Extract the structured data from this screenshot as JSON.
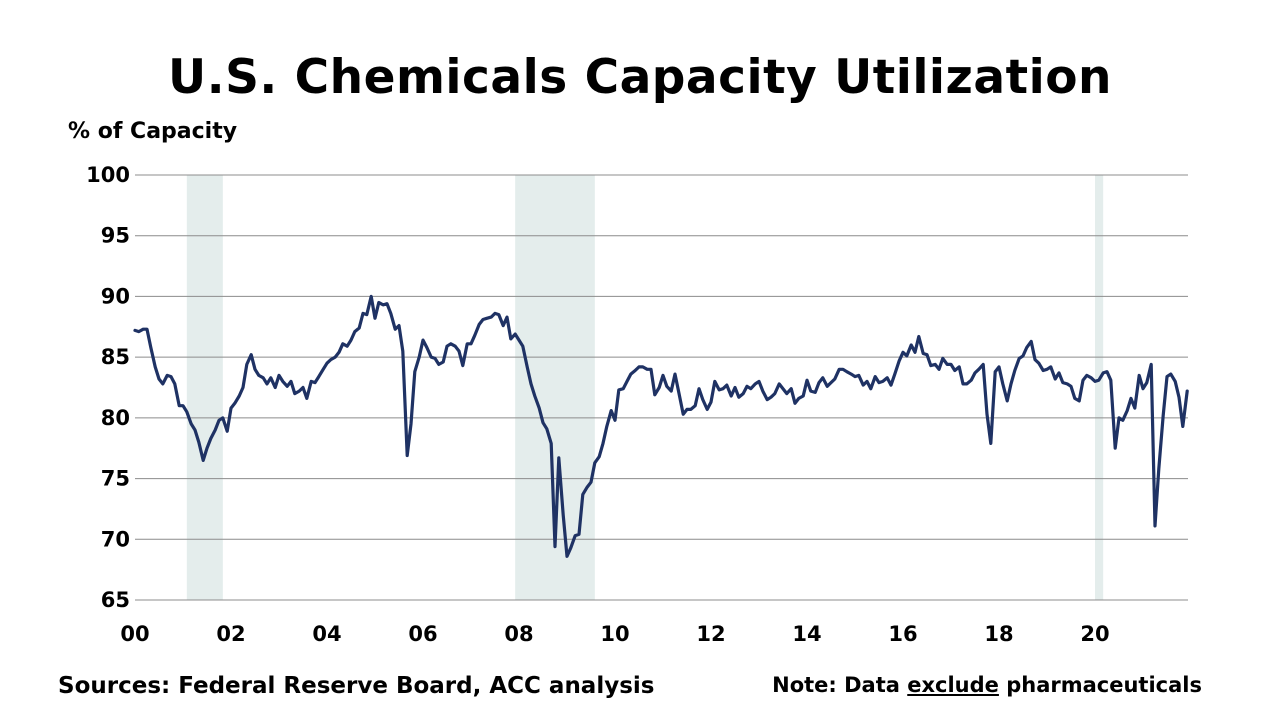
{
  "chart_data": {
    "type": "line",
    "title": "U.S. Chemicals Capacity Utilization",
    "ylabel": "% of Capacity",
    "xlabel": "",
    "ylim": [
      65,
      100
    ],
    "xlim": [
      2000,
      2021.83
    ],
    "yticks": [
      65,
      70,
      75,
      80,
      85,
      90,
      95,
      100
    ],
    "xticks": [
      {
        "x": 2000,
        "label": "00"
      },
      {
        "x": 2002,
        "label": "02"
      },
      {
        "x": 2004,
        "label": "04"
      },
      {
        "x": 2006,
        "label": "06"
      },
      {
        "x": 2008,
        "label": "08"
      },
      {
        "x": 2010,
        "label": "10"
      },
      {
        "x": 2012,
        "label": "12"
      },
      {
        "x": 2014,
        "label": "14"
      },
      {
        "x": 2016,
        "label": "16"
      },
      {
        "x": 2018,
        "label": "18"
      },
      {
        "x": 2020,
        "label": "20"
      }
    ],
    "grid": "horizontal",
    "recessions": [
      [
        2001.08,
        2001.83
      ],
      [
        2007.92,
        2009.58
      ],
      [
        2020.0,
        2020.17
      ]
    ],
    "line_color": "#1F3264",
    "recession_color": "#E4EDEC",
    "series": [
      {
        "points": [
          [
            2000.0,
            87.2
          ],
          [
            2000.08,
            87.1
          ],
          [
            2000.17,
            87.3
          ],
          [
            2000.25,
            87.3
          ],
          [
            2000.33,
            85.8
          ],
          [
            2000.42,
            84.2
          ],
          [
            2000.5,
            83.2
          ],
          [
            2000.58,
            82.8
          ],
          [
            2000.67,
            83.5
          ],
          [
            2000.75,
            83.4
          ],
          [
            2000.83,
            82.8
          ],
          [
            2000.92,
            81.0
          ],
          [
            2001.0,
            81.0
          ],
          [
            2001.08,
            80.5
          ],
          [
            2001.17,
            79.5
          ],
          [
            2001.25,
            79.0
          ],
          [
            2001.33,
            78.0
          ],
          [
            2001.42,
            76.5
          ],
          [
            2001.5,
            77.5
          ],
          [
            2001.58,
            78.3
          ],
          [
            2001.67,
            79.0
          ],
          [
            2001.75,
            79.8
          ],
          [
            2001.83,
            80.0
          ],
          [
            2001.92,
            78.9
          ],
          [
            2002.0,
            80.8
          ],
          [
            2002.08,
            81.2
          ],
          [
            2002.17,
            81.8
          ],
          [
            2002.25,
            82.5
          ],
          [
            2002.33,
            84.4
          ],
          [
            2002.42,
            85.2
          ],
          [
            2002.5,
            84.0
          ],
          [
            2002.58,
            83.5
          ],
          [
            2002.67,
            83.3
          ],
          [
            2002.75,
            82.8
          ],
          [
            2002.83,
            83.3
          ],
          [
            2002.92,
            82.5
          ],
          [
            2003.0,
            83.5
          ],
          [
            2003.08,
            83.0
          ],
          [
            2003.17,
            82.6
          ],
          [
            2003.25,
            83.0
          ],
          [
            2003.33,
            82.0
          ],
          [
            2003.42,
            82.2
          ],
          [
            2003.5,
            82.5
          ],
          [
            2003.58,
            81.6
          ],
          [
            2003.67,
            83.0
          ],
          [
            2003.75,
            82.9
          ],
          [
            2003.83,
            83.4
          ],
          [
            2003.92,
            84.0
          ],
          [
            2004.0,
            84.5
          ],
          [
            2004.08,
            84.8
          ],
          [
            2004.17,
            85.0
          ],
          [
            2004.25,
            85.4
          ],
          [
            2004.33,
            86.1
          ],
          [
            2004.42,
            85.9
          ],
          [
            2004.5,
            86.4
          ],
          [
            2004.58,
            87.1
          ],
          [
            2004.67,
            87.4
          ],
          [
            2004.75,
            88.6
          ],
          [
            2004.83,
            88.5
          ],
          [
            2004.92,
            90.0
          ],
          [
            2005.0,
            88.2
          ],
          [
            2005.08,
            89.5
          ],
          [
            2005.17,
            89.3
          ],
          [
            2005.25,
            89.4
          ],
          [
            2005.33,
            88.6
          ],
          [
            2005.42,
            87.3
          ],
          [
            2005.5,
            87.6
          ],
          [
            2005.58,
            85.5
          ],
          [
            2005.67,
            76.9
          ],
          [
            2005.75,
            79.5
          ],
          [
            2005.83,
            83.8
          ],
          [
            2005.92,
            85.0
          ],
          [
            2006.0,
            86.4
          ],
          [
            2006.08,
            85.8
          ],
          [
            2006.17,
            85.0
          ],
          [
            2006.25,
            84.9
          ],
          [
            2006.33,
            84.4
          ],
          [
            2006.42,
            84.6
          ],
          [
            2006.5,
            85.9
          ],
          [
            2006.58,
            86.1
          ],
          [
            2006.67,
            85.9
          ],
          [
            2006.75,
            85.5
          ],
          [
            2006.83,
            84.3
          ],
          [
            2006.92,
            86.1
          ],
          [
            2007.0,
            86.1
          ],
          [
            2007.08,
            86.8
          ],
          [
            2007.17,
            87.7
          ],
          [
            2007.25,
            88.1
          ],
          [
            2007.33,
            88.2
          ],
          [
            2007.42,
            88.3
          ],
          [
            2007.5,
            88.6
          ],
          [
            2007.58,
            88.5
          ],
          [
            2007.67,
            87.6
          ],
          [
            2007.75,
            88.3
          ],
          [
            2007.83,
            86.5
          ],
          [
            2007.92,
            86.9
          ],
          [
            2008.0,
            86.4
          ],
          [
            2008.08,
            85.9
          ],
          [
            2008.17,
            84.2
          ],
          [
            2008.25,
            82.8
          ],
          [
            2008.33,
            81.8
          ],
          [
            2008.42,
            80.8
          ],
          [
            2008.5,
            79.6
          ],
          [
            2008.58,
            79.1
          ],
          [
            2008.67,
            77.9
          ],
          [
            2008.75,
            69.4
          ],
          [
            2008.83,
            76.7
          ],
          [
            2008.92,
            72.0
          ],
          [
            2009.0,
            68.6
          ],
          [
            2009.08,
            69.3
          ],
          [
            2009.17,
            70.3
          ],
          [
            2009.25,
            70.4
          ],
          [
            2009.33,
            73.7
          ],
          [
            2009.42,
            74.3
          ],
          [
            2009.5,
            74.7
          ],
          [
            2009.58,
            76.3
          ],
          [
            2009.67,
            76.8
          ],
          [
            2009.75,
            77.9
          ],
          [
            2009.83,
            79.3
          ],
          [
            2009.92,
            80.6
          ],
          [
            2010.0,
            79.8
          ],
          [
            2010.08,
            82.3
          ],
          [
            2010.17,
            82.4
          ],
          [
            2010.25,
            83.0
          ],
          [
            2010.33,
            83.6
          ],
          [
            2010.42,
            83.9
          ],
          [
            2010.5,
            84.2
          ],
          [
            2010.58,
            84.2
          ],
          [
            2010.67,
            84.0
          ],
          [
            2010.75,
            84.0
          ],
          [
            2010.83,
            81.9
          ],
          [
            2010.92,
            82.5
          ],
          [
            2011.0,
            83.5
          ],
          [
            2011.08,
            82.6
          ],
          [
            2011.17,
            82.2
          ],
          [
            2011.25,
            83.6
          ],
          [
            2011.33,
            82.1
          ],
          [
            2011.42,
            80.3
          ],
          [
            2011.5,
            80.7
          ],
          [
            2011.58,
            80.7
          ],
          [
            2011.67,
            81.0
          ],
          [
            2011.75,
            82.4
          ],
          [
            2011.83,
            81.5
          ],
          [
            2011.92,
            80.7
          ],
          [
            2012.0,
            81.3
          ],
          [
            2012.08,
            83.0
          ],
          [
            2012.17,
            82.3
          ],
          [
            2012.25,
            82.4
          ],
          [
            2012.33,
            82.7
          ],
          [
            2012.42,
            81.8
          ],
          [
            2012.5,
            82.5
          ],
          [
            2012.58,
            81.7
          ],
          [
            2012.67,
            82.0
          ],
          [
            2012.75,
            82.6
          ],
          [
            2012.83,
            82.4
          ],
          [
            2012.92,
            82.8
          ],
          [
            2013.0,
            83.0
          ],
          [
            2013.08,
            82.2
          ],
          [
            2013.17,
            81.5
          ],
          [
            2013.25,
            81.7
          ],
          [
            2013.33,
            82.0
          ],
          [
            2013.42,
            82.8
          ],
          [
            2013.5,
            82.4
          ],
          [
            2013.58,
            82.0
          ],
          [
            2013.67,
            82.4
          ],
          [
            2013.75,
            81.2
          ],
          [
            2013.83,
            81.6
          ],
          [
            2013.92,
            81.8
          ],
          [
            2014.0,
            83.1
          ],
          [
            2014.08,
            82.2
          ],
          [
            2014.17,
            82.1
          ],
          [
            2014.25,
            82.9
          ],
          [
            2014.33,
            83.3
          ],
          [
            2014.42,
            82.6
          ],
          [
            2014.5,
            82.9
          ],
          [
            2014.58,
            83.2
          ],
          [
            2014.67,
            84.0
          ],
          [
            2014.75,
            84.0
          ],
          [
            2014.83,
            83.8
          ],
          [
            2014.92,
            83.6
          ],
          [
            2015.0,
            83.4
          ],
          [
            2015.08,
            83.5
          ],
          [
            2015.17,
            82.7
          ],
          [
            2015.25,
            83.0
          ],
          [
            2015.33,
            82.4
          ],
          [
            2015.42,
            83.4
          ],
          [
            2015.5,
            82.9
          ],
          [
            2015.58,
            83.0
          ],
          [
            2015.67,
            83.3
          ],
          [
            2015.75,
            82.7
          ],
          [
            2015.83,
            83.6
          ],
          [
            2015.92,
            84.7
          ],
          [
            2016.0,
            85.4
          ],
          [
            2016.08,
            85.1
          ],
          [
            2016.17,
            86.0
          ],
          [
            2016.25,
            85.4
          ],
          [
            2016.33,
            86.7
          ],
          [
            2016.42,
            85.3
          ],
          [
            2016.5,
            85.2
          ],
          [
            2016.58,
            84.3
          ],
          [
            2016.67,
            84.4
          ],
          [
            2016.75,
            84.0
          ],
          [
            2016.83,
            84.9
          ],
          [
            2016.92,
            84.4
          ],
          [
            2017.0,
            84.4
          ],
          [
            2017.08,
            83.9
          ],
          [
            2017.17,
            84.2
          ],
          [
            2017.25,
            82.8
          ],
          [
            2017.33,
            82.8
          ],
          [
            2017.42,
            83.1
          ],
          [
            2017.5,
            83.7
          ],
          [
            2017.58,
            84.0
          ],
          [
            2017.67,
            84.4
          ],
          [
            2017.75,
            80.3
          ],
          [
            2017.83,
            77.9
          ],
          [
            2017.92,
            83.8
          ],
          [
            2018.0,
            84.2
          ],
          [
            2018.08,
            82.8
          ],
          [
            2018.17,
            81.4
          ],
          [
            2018.25,
            82.8
          ],
          [
            2018.33,
            83.9
          ],
          [
            2018.42,
            84.9
          ],
          [
            2018.5,
            85.1
          ],
          [
            2018.58,
            85.8
          ],
          [
            2018.67,
            86.3
          ],
          [
            2018.75,
            84.8
          ],
          [
            2018.83,
            84.5
          ],
          [
            2018.92,
            83.9
          ],
          [
            2019.0,
            84.0
          ],
          [
            2019.08,
            84.2
          ],
          [
            2019.17,
            83.2
          ],
          [
            2019.25,
            83.7
          ],
          [
            2019.33,
            82.9
          ],
          [
            2019.42,
            82.8
          ],
          [
            2019.5,
            82.6
          ],
          [
            2019.58,
            81.6
          ],
          [
            2019.67,
            81.4
          ],
          [
            2019.75,
            83.1
          ],
          [
            2019.83,
            83.5
          ],
          [
            2019.92,
            83.3
          ],
          [
            2020.0,
            83.0
          ],
          [
            2020.08,
            83.1
          ],
          [
            2020.17,
            83.7
          ],
          [
            2020.25,
            83.8
          ],
          [
            2020.33,
            83.1
          ],
          [
            2020.42,
            77.5
          ],
          [
            2020.5,
            80.0
          ],
          [
            2020.58,
            79.8
          ],
          [
            2020.67,
            80.6
          ],
          [
            2020.75,
            81.6
          ],
          [
            2020.83,
            80.8
          ],
          [
            2020.92,
            83.5
          ],
          [
            2021.0,
            82.4
          ],
          [
            2021.08,
            82.9
          ],
          [
            2021.17,
            84.4
          ],
          [
            2021.25,
            71.1
          ],
          [
            2021.33,
            75.8
          ],
          [
            2021.42,
            80.2
          ],
          [
            2021.5,
            83.4
          ],
          [
            2021.58,
            83.6
          ],
          [
            2021.67,
            83.0
          ],
          [
            2021.75,
            81.7
          ],
          [
            2021.83,
            79.3
          ],
          [
            2021.92,
            82.2
          ]
        ]
      }
    ]
  },
  "footer": {
    "sources": "Sources: Federal Reserve Board, ACC analysis",
    "note_prefix": "Note: Data ",
    "note_underlined": "exclude",
    "note_suffix": " pharmaceuticals"
  }
}
